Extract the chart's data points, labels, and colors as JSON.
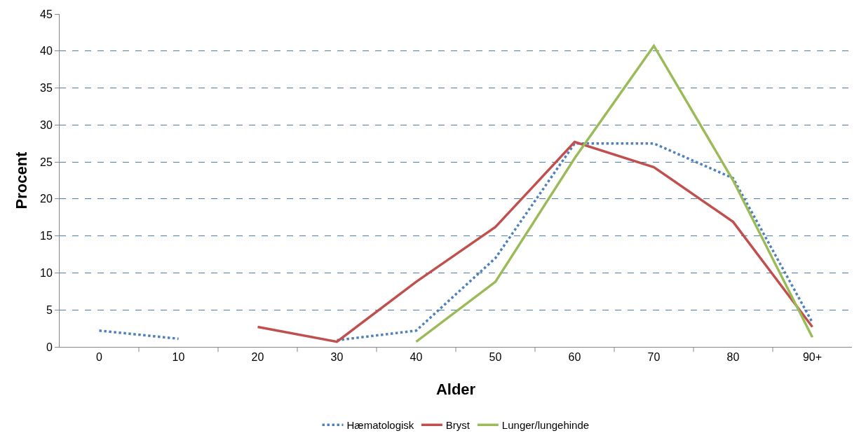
{
  "chart_data": {
    "type": "line",
    "xlabel": "Alder",
    "ylabel": "Procent",
    "categories": [
      "0",
      "10",
      "20",
      "30",
      "40",
      "50",
      "60",
      "70",
      "80",
      "90+"
    ],
    "series": [
      {
        "name": "Hæmatologisk",
        "color": "#4f81bd",
        "line_style": "dotted",
        "values": [
          2.2,
          1.1,
          null,
          0.9,
          2.2,
          12,
          27.5,
          27.5,
          22.8,
          3.3
        ]
      },
      {
        "name": "Bryst",
        "color": "#c0504d",
        "line_style": "solid",
        "values": [
          null,
          null,
          2.7,
          0.7,
          8.8,
          16.2,
          27.7,
          24.3,
          16.9,
          2.7
        ]
      },
      {
        "name": "Lunger/lungehinde",
        "color": "#9bbb59",
        "line_style": "solid",
        "values": [
          null,
          null,
          null,
          null,
          0.7,
          8.8,
          25.5,
          40.7,
          22.5,
          1.3
        ]
      }
    ],
    "ylim": [
      0,
      45
    ],
    "yticks": [
      0,
      5,
      10,
      15,
      20,
      25,
      30,
      35,
      40,
      45
    ],
    "grid": "y",
    "legend": "bottom",
    "marker": "none"
  }
}
